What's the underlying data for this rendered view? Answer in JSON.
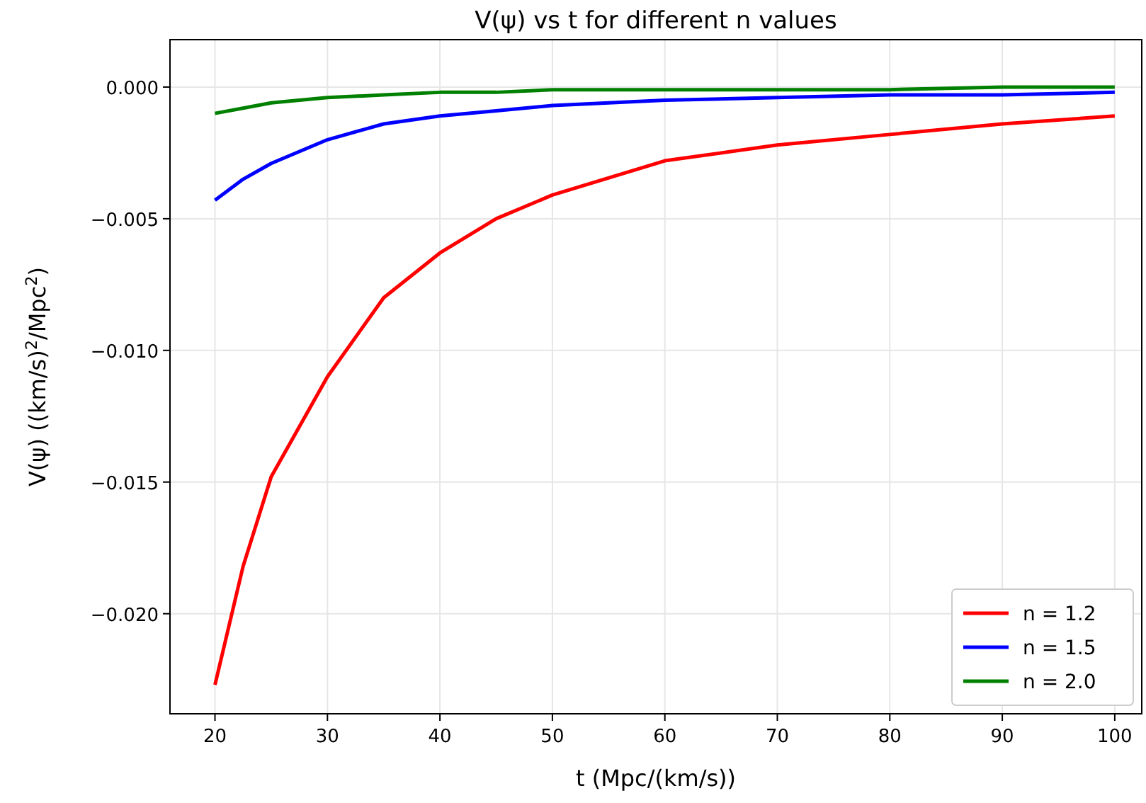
{
  "chart_data": {
    "type": "line",
    "title": "V(ψ) vs t for different n values",
    "xlabel": "t (Mpc/(km/s))",
    "ylabel": "V(ψ) ((km/s)$^{2}$/Mpc$^{2}$)",
    "x": [
      20,
      22.5,
      25,
      30,
      35,
      40,
      45,
      50,
      60,
      70,
      80,
      90,
      100
    ],
    "series": [
      {
        "name": "n = 1.2",
        "color": "#ff0000",
        "values": [
          -0.0227,
          -0.0182,
          -0.0148,
          -0.011,
          -0.008,
          -0.0063,
          -0.005,
          -0.0041,
          -0.0028,
          -0.0022,
          -0.0018,
          -0.0014,
          -0.0011
        ]
      },
      {
        "name": "n = 1.5",
        "color": "#0000ff",
        "values": [
          -0.0043,
          -0.0035,
          -0.0029,
          -0.002,
          -0.0014,
          -0.0011,
          -0.0009,
          -0.0007,
          -0.0005,
          -0.0004,
          -0.0003,
          -0.0003,
          -0.0002
        ]
      },
      {
        "name": "n = 2.0",
        "color": "#008000",
        "values": [
          -0.001,
          -0.0008,
          -0.0006,
          -0.0004,
          -0.0003,
          -0.0002,
          -0.0002,
          -0.0001,
          -0.0001,
          -0.0001,
          -0.0001,
          0,
          0
        ]
      }
    ],
    "xlim": [
      16,
      102.4
    ],
    "ylim": [
      -0.0238,
      0.0018
    ],
    "xticks": [
      20,
      30,
      40,
      50,
      60,
      70,
      80,
      90,
      100
    ],
    "yticks": [
      {
        "value": 0,
        "label": "0.000"
      },
      {
        "value": -0.005,
        "label": "−0.005"
      },
      {
        "value": -0.01,
        "label": "−0.010"
      },
      {
        "value": -0.015,
        "label": "−0.015"
      },
      {
        "value": -0.02,
        "label": "−0.020"
      }
    ],
    "grid": true,
    "legend": "bottom right",
    "line_style": "solid",
    "marker": "none"
  }
}
